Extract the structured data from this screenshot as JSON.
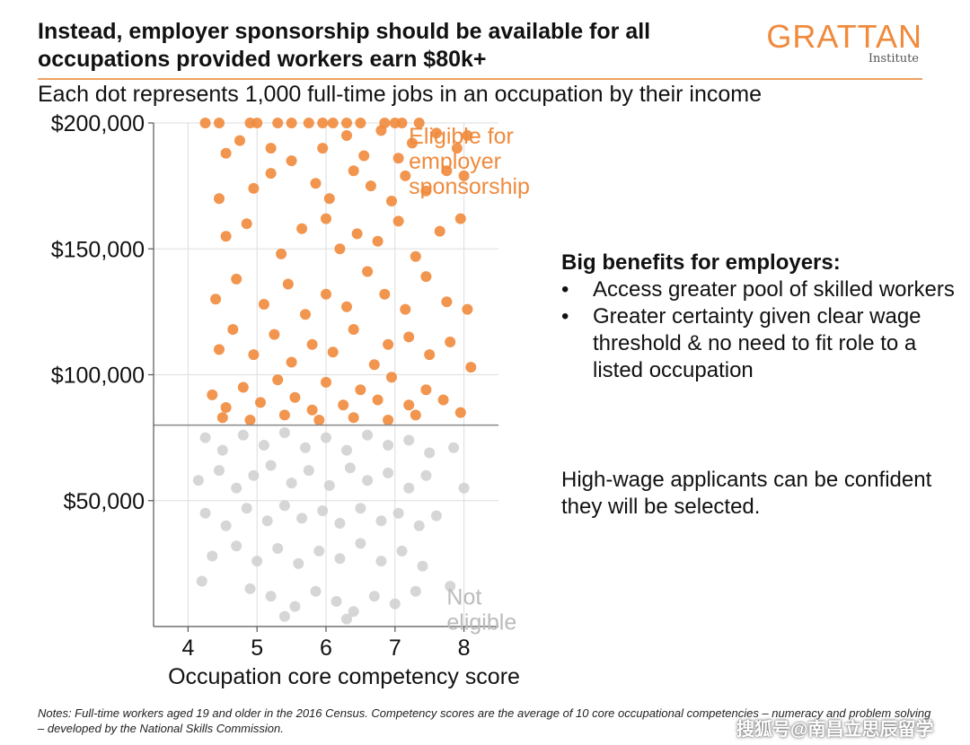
{
  "header": {
    "title_line1": "Instead, employer sponsorship should be available for all",
    "title_line2": "occupations provided workers earn $80k+",
    "logo_word": "GRATTAN",
    "logo_sub": "Institute",
    "subtitle": "Each dot represents 1,000 full-time jobs in an occupation by their income"
  },
  "panel": {
    "heading": "Big benefits for employers:",
    "bullet_glyph": "•",
    "bullets": [
      "Access greater pool of skilled workers",
      "Greater certainty given clear wage threshold & no need to fit role to a listed occupation"
    ],
    "conclusion": "High-wage applicants can be confident they will be selected."
  },
  "notes": "Notes: Full-time workers aged 19 and older in the 2016 Census. Competency scores are the average of 10 core occupational competencies – numeracy and problem solving – developed by the National Skills Commission.",
  "watermark": "搜狐号@南昌立思辰留学",
  "chart_data": {
    "type": "scatter",
    "xlabel": "Occupation core competency score",
    "ylabel": "",
    "xlim": [
      3.5,
      8.5
    ],
    "ylim": [
      0,
      200000
    ],
    "xticks": [
      4,
      5,
      6,
      7,
      8
    ],
    "xtick_labels": [
      "4",
      "5",
      "6",
      "7",
      "8"
    ],
    "yticks": [
      50000,
      100000,
      150000,
      200000
    ],
    "ytick_labels": [
      "$50,000",
      "$100,000",
      "$150,000",
      "$200,000"
    ],
    "grid": "vertical",
    "threshold": 80000,
    "colors": {
      "eligible": "#f08a3c",
      "not_eligible": "#cfcfcf",
      "threshold_line": "#888888",
      "grid": "#dddddd"
    },
    "series": [
      {
        "name": "Eligible for employer sponsorship",
        "label_lines": [
          "Eligible for",
          "employer",
          "sponsorship"
        ],
        "label_anchor": [
          7.2,
          195000
        ],
        "points": [
          [
            4.25,
            200000
          ],
          [
            4.45,
            200000
          ],
          [
            4.9,
            200000
          ],
          [
            5.0,
            200000
          ],
          [
            5.3,
            200000
          ],
          [
            5.5,
            200000
          ],
          [
            5.75,
            200000
          ],
          [
            5.95,
            200000
          ],
          [
            6.1,
            200000
          ],
          [
            6.3,
            200000
          ],
          [
            6.5,
            200000
          ],
          [
            6.85,
            200000
          ],
          [
            7.0,
            200000
          ],
          [
            7.1,
            200000
          ],
          [
            7.35,
            200000
          ],
          [
            4.55,
            188000
          ],
          [
            4.75,
            193000
          ],
          [
            5.2,
            190000
          ],
          [
            5.5,
            185000
          ],
          [
            5.95,
            190000
          ],
          [
            6.3,
            195000
          ],
          [
            6.55,
            187000
          ],
          [
            6.8,
            197000
          ],
          [
            7.05,
            186000
          ],
          [
            7.25,
            192000
          ],
          [
            7.6,
            196000
          ],
          [
            7.9,
            190000
          ],
          [
            8.05,
            195000
          ],
          [
            4.45,
            170000
          ],
          [
            4.95,
            174000
          ],
          [
            5.2,
            180000
          ],
          [
            5.85,
            176000
          ],
          [
            6.05,
            170000
          ],
          [
            6.4,
            181000
          ],
          [
            6.65,
            175000
          ],
          [
            6.95,
            169000
          ],
          [
            7.15,
            179000
          ],
          [
            7.45,
            173000
          ],
          [
            7.75,
            181000
          ],
          [
            8.0,
            179000
          ],
          [
            4.55,
            155000
          ],
          [
            4.85,
            160000
          ],
          [
            5.35,
            148000
          ],
          [
            5.65,
            158000
          ],
          [
            6.0,
            162000
          ],
          [
            6.2,
            150000
          ],
          [
            6.45,
            156000
          ],
          [
            6.75,
            153000
          ],
          [
            7.05,
            161000
          ],
          [
            7.3,
            147000
          ],
          [
            7.65,
            157000
          ],
          [
            7.95,
            162000
          ],
          [
            4.4,
            130000
          ],
          [
            4.7,
            138000
          ],
          [
            5.1,
            128000
          ],
          [
            5.45,
            136000
          ],
          [
            5.7,
            124000
          ],
          [
            6.0,
            132000
          ],
          [
            6.3,
            127000
          ],
          [
            6.6,
            141000
          ],
          [
            6.85,
            132000
          ],
          [
            7.15,
            126000
          ],
          [
            7.45,
            139000
          ],
          [
            7.75,
            129000
          ],
          [
            8.05,
            126000
          ],
          [
            4.45,
            110000
          ],
          [
            4.65,
            118000
          ],
          [
            4.95,
            108000
          ],
          [
            5.25,
            116000
          ],
          [
            5.5,
            105000
          ],
          [
            5.8,
            112000
          ],
          [
            6.1,
            109000
          ],
          [
            6.4,
            118000
          ],
          [
            6.7,
            104000
          ],
          [
            6.9,
            112000
          ],
          [
            7.2,
            115000
          ],
          [
            7.5,
            108000
          ],
          [
            7.8,
            113000
          ],
          [
            8.1,
            103000
          ],
          [
            4.35,
            92000
          ],
          [
            4.55,
            87000
          ],
          [
            4.8,
            95000
          ],
          [
            5.05,
            89000
          ],
          [
            5.3,
            98000
          ],
          [
            5.55,
            91000
          ],
          [
            5.8,
            86000
          ],
          [
            6.0,
            97000
          ],
          [
            6.25,
            88000
          ],
          [
            6.5,
            94000
          ],
          [
            6.75,
            90000
          ],
          [
            6.95,
            99000
          ],
          [
            7.2,
            88000
          ],
          [
            7.45,
            94000
          ],
          [
            7.7,
            90000
          ],
          [
            7.95,
            85000
          ],
          [
            4.5,
            83000
          ],
          [
            4.9,
            82000
          ],
          [
            5.4,
            84000
          ],
          [
            5.9,
            82000
          ],
          [
            6.4,
            83000
          ],
          [
            6.9,
            82000
          ],
          [
            7.3,
            84000
          ]
        ]
      },
      {
        "name": "Not eligible",
        "label_lines": [
          "Not",
          "eligible"
        ],
        "label_anchor": [
          7.75,
          12000
        ],
        "points": [
          [
            4.25,
            75000
          ],
          [
            4.5,
            70000
          ],
          [
            4.8,
            76000
          ],
          [
            5.1,
            72000
          ],
          [
            5.4,
            77000
          ],
          [
            5.7,
            71000
          ],
          [
            6.0,
            75000
          ],
          [
            6.3,
            70000
          ],
          [
            6.6,
            76000
          ],
          [
            6.9,
            72000
          ],
          [
            7.2,
            74000
          ],
          [
            7.5,
            69000
          ],
          [
            7.85,
            71000
          ],
          [
            4.15,
            58000
          ],
          [
            4.45,
            62000
          ],
          [
            4.7,
            55000
          ],
          [
            4.95,
            60000
          ],
          [
            5.2,
            64000
          ],
          [
            5.5,
            57000
          ],
          [
            5.75,
            62000
          ],
          [
            6.05,
            56000
          ],
          [
            6.35,
            63000
          ],
          [
            6.6,
            58000
          ],
          [
            6.9,
            61000
          ],
          [
            7.2,
            55000
          ],
          [
            7.45,
            60000
          ],
          [
            8.0,
            55000
          ],
          [
            4.25,
            45000
          ],
          [
            4.55,
            40000
          ],
          [
            4.85,
            47000
          ],
          [
            5.15,
            42000
          ],
          [
            5.4,
            48000
          ],
          [
            5.65,
            43000
          ],
          [
            5.95,
            46000
          ],
          [
            6.2,
            41000
          ],
          [
            6.5,
            47000
          ],
          [
            6.8,
            42000
          ],
          [
            7.05,
            45000
          ],
          [
            7.35,
            40000
          ],
          [
            7.6,
            44000
          ],
          [
            4.35,
            28000
          ],
          [
            4.7,
            32000
          ],
          [
            5.0,
            26000
          ],
          [
            5.3,
            31000
          ],
          [
            5.6,
            25000
          ],
          [
            5.9,
            30000
          ],
          [
            6.2,
            27000
          ],
          [
            6.5,
            33000
          ],
          [
            6.8,
            26000
          ],
          [
            7.1,
            30000
          ],
          [
            7.4,
            24000
          ],
          [
            4.2,
            18000
          ],
          [
            4.9,
            15000
          ],
          [
            5.2,
            12000
          ],
          [
            5.55,
            8000
          ],
          [
            5.85,
            14000
          ],
          [
            6.15,
            10000
          ],
          [
            6.4,
            6000
          ],
          [
            6.7,
            12000
          ],
          [
            7.0,
            9000
          ],
          [
            7.3,
            14000
          ],
          [
            7.8,
            16000
          ],
          [
            5.4,
            4000
          ],
          [
            6.3,
            3000
          ]
        ]
      }
    ]
  }
}
